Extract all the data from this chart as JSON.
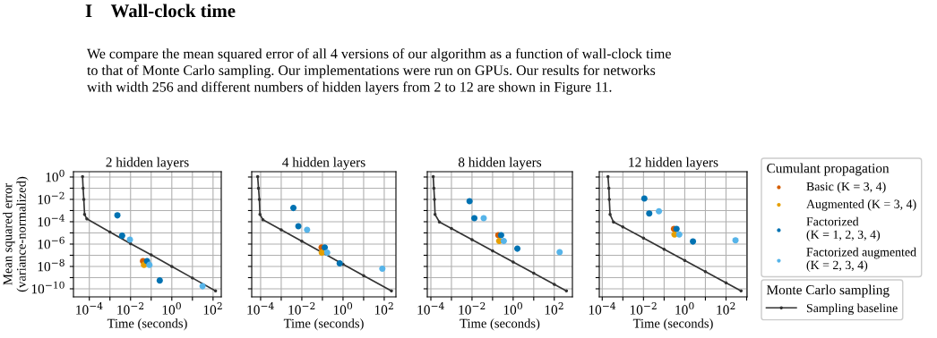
{
  "chart_data": [
    {
      "type": "scatter",
      "title": "2 hidden layers",
      "xlabel": "Time (seconds)",
      "ylabel": "Mean squared error\n(variance-normalized)",
      "log": "xy",
      "grid": true,
      "annotations": [
        "I    Wall-clock time",
        "We compare the mean squared error of all 4 versions of our algorithm as a function of wall-clock time\nto that of Monte Carlo sampling. Our implementations were run on GPUs. Our results for networks\nwith width 256 and different numbers of hidden layers from 2 to 12 are shown in Figure 11."
      ],
      "xlim": [
        1.7e-05,
        250
      ],
      "ylim": [
        1.9e-11,
        3
      ],
      "xticks": [
        {
          "value": 0.0001,
          "label": "10$^{−4}$"
        },
        {
          "value": 0.001,
          "label": null
        },
        {
          "value": 0.01,
          "label": "10$^{−2}$"
        },
        {
          "value": 0.1,
          "label": null
        },
        {
          "value": 1,
          "label": "10$^{0}$"
        },
        {
          "value": 10,
          "label": null
        },
        {
          "value": 100,
          "label": "10$^{2}$"
        }
      ],
      "yticks": [
        {
          "value": 1,
          "label": "10$^{0}$"
        },
        {
          "value": 0.1,
          "label": null
        },
        {
          "value": 0.01,
          "label": "10$^{−2}$"
        },
        {
          "value": 0.001,
          "label": null
        },
        {
          "value": 0.0001,
          "label": "10$^{−4}$"
        },
        {
          "value": 1e-05,
          "label": null
        },
        {
          "value": 1e-06,
          "label": "10$^{−6}$"
        },
        {
          "value": 1e-07,
          "label": null
        },
        {
          "value": 1e-08,
          "label": "10$^{−8}$"
        },
        {
          "value": 1e-09,
          "label": null
        },
        {
          "value": 1e-10,
          "label": "10$^{−10}$"
        }
      ],
      "series": [
        {
          "type": "line",
          "color": "#333333",
          "marker": "circle",
          "x": [
            4.7e-05,
            5e-05,
            5.4e-05,
            5.9e-05,
            7.6e-05,
            0.001,
            0.01,
            0.1,
            1,
            10,
            132
          ],
          "values": [
            1.1,
            0.1,
            0.01,
            0.00045,
            0.00018,
            1.2e-05,
            1.1e-06,
            1.1e-07,
            1e-08,
            9.3e-10,
            6.5e-11
          ]
        },
        {
          "type": "scatter",
          "color": "#d55e00",
          "marker": "circle",
          "x": [
            0.04
          ],
          "values": [
            3e-08
          ]
        },
        {
          "type": "scatter",
          "color": "#e69f00",
          "marker": "circle",
          "x": [
            0.045
          ],
          "values": [
            1.4e-08
          ]
        },
        {
          "type": "scatter",
          "color": "#0072b2",
          "marker": "circle",
          "x": [
            0.0023,
            0.0039,
            0.063,
            0.26
          ],
          "values": [
            0.00037,
            5.6e-06,
            3e-08,
            5.6e-10
          ]
        },
        {
          "type": "scatter",
          "color": "#56b4e9",
          "marker": "circle",
          "x": [
            0.0093,
            0.082,
            31
          ],
          "values": [
            2.5e-06,
            1.4e-08,
            1.7e-10
          ]
        }
      ]
    },
    {
      "type": "scatter",
      "title": "4 hidden layers",
      "xlabel": "Time (seconds)",
      "log": "xy",
      "grid": true,
      "tick_labels": "x",
      "xlim": [
        3.7e-05,
        370
      ],
      "ylim": [
        1.9e-11,
        3
      ],
      "xticks": [
        {
          "value": 0.0001,
          "label": "10$^{−4}$"
        },
        {
          "value": 0.001,
          "label": null
        },
        {
          "value": 0.01,
          "label": "10$^{−2}$"
        },
        {
          "value": 0.1,
          "label": null
        },
        {
          "value": 1,
          "label": "10$^{0}$"
        },
        {
          "value": 10,
          "label": null
        },
        {
          "value": 100,
          "label": "10$^{2}$"
        }
      ],
      "yticks": [
        1,
        0.1,
        0.01,
        0.001,
        0.0001,
        1e-05,
        1e-06,
        1e-07,
        1e-08,
        1e-09,
        1e-10
      ],
      "series": [
        {
          "type": "line",
          "color": "#333333",
          "marker": "circle",
          "x": [
            7.2e-05,
            7.9e-05,
            8.7e-05,
            9.3e-05,
            0.00013,
            0.001,
            0.01,
            0.1,
            1,
            10,
            224
          ],
          "values": [
            1.1,
            0.1,
            0.01,
            0.00045,
            0.00015,
            1.9e-05,
            1.8e-06,
            1.7e-07,
            1.6e-08,
            1.5e-09,
            6.5e-11
          ]
        },
        {
          "type": "scatter",
          "color": "#d55e00",
          "marker": "circle",
          "x": [
            0.091
          ],
          "values": [
            5e-07
          ]
        },
        {
          "type": "scatter",
          "color": "#e69f00",
          "marker": "circle",
          "x": [
            0.093
          ],
          "values": [
            1.7e-07
          ]
        },
        {
          "type": "scatter",
          "color": "#0072b2",
          "marker": "circle",
          "x": [
            0.0039,
            0.0068,
            0.13,
            0.69
          ],
          "values": [
            0.0017,
            4e-05,
            5e-07,
            1.9e-08
          ]
        },
        {
          "type": "scatter",
          "color": "#56b4e9",
          "marker": "circle",
          "x": [
            0.018,
            0.17,
            81
          ],
          "values": [
            1.9e-05,
            1.7e-07,
            6.3e-09
          ]
        }
      ]
    },
    {
      "type": "scatter",
      "title": "8 hidden layers",
      "xlabel": "Time (seconds)",
      "log": "xy",
      "grid": true,
      "tick_labels": "x",
      "xlim": [
        6.7e-05,
        760
      ],
      "ylim": [
        1.9e-11,
        3
      ],
      "xticks": [
        {
          "value": 0.0001,
          "label": "10$^{−4}$"
        },
        {
          "value": 0.001,
          "label": null
        },
        {
          "value": 0.01,
          "label": "10$^{−2}$"
        },
        {
          "value": 0.1,
          "label": null
        },
        {
          "value": 1,
          "label": "10$^{0}$"
        },
        {
          "value": 10,
          "label": null
        },
        {
          "value": 100,
          "label": "10$^{2}$"
        }
      ],
      "yticks": [
        1,
        0.1,
        0.01,
        0.001,
        0.0001,
        1e-05,
        1e-06,
        1e-07,
        1e-08,
        1e-09,
        1e-10
      ],
      "series": [
        {
          "type": "line",
          "color": "#333333",
          "marker": "circle",
          "x": [
            0.00013,
            0.00014,
            0.00015,
            0.00016,
            0.00026,
            0.001,
            0.01,
            0.1,
            1,
            10,
            100,
            389
          ],
          "values": [
            1.1,
            0.1,
            0.01,
            0.00045,
            9.5e-05,
            2.5e-05,
            2.5e-06,
            2.5e-07,
            2.5e-08,
            2.5e-09,
            2.5e-10,
            6.5e-11
          ]
        },
        {
          "type": "scatter",
          "color": "#d55e00",
          "marker": "circle",
          "x": [
            0.19
          ],
          "values": [
            6.3e-06
          ]
        },
        {
          "type": "scatter",
          "color": "#e69f00",
          "marker": "circle",
          "x": [
            0.21
          ],
          "values": [
            1.9e-06
          ]
        },
        {
          "type": "scatter",
          "color": "#0072b2",
          "marker": "circle",
          "x": [
            0.0076,
            0.013,
            0.26,
            1.6
          ],
          "values": [
            0.0068,
            0.00021,
            6.3e-06,
            3.9e-07
          ]
        },
        {
          "type": "scatter",
          "color": "#56b4e9",
          "marker": "circle",
          "x": [
            0.037,
            0.35,
            182
          ],
          "values": [
            0.00021,
            1.9e-06,
            1.9e-07
          ]
        }
      ]
    },
    {
      "type": "scatter",
      "title": "12 hidden layers",
      "xlabel": "Time (seconds)",
      "log": "xy",
      "grid": true,
      "legend": "right",
      "legend_title": [
        "Cumulant propagation",
        "Monte Carlo sampling"
      ],
      "tick_labels": "x",
      "xlim": [
        7.2e-05,
        1050
      ],
      "ylim": [
        1.9e-11,
        3
      ],
      "xticks": [
        {
          "value": 0.0001,
          "label": "10$^{−4}$"
        },
        {
          "value": 0.001,
          "label": null
        },
        {
          "value": 0.01,
          "label": "10$^{−2}$"
        },
        {
          "value": 0.1,
          "label": null
        },
        {
          "value": 1,
          "label": "10$^{0}$"
        },
        {
          "value": 10,
          "label": null
        },
        {
          "value": 100,
          "label": "10$^{2}$"
        },
        {
          "value": 1000,
          "label": null
        }
      ],
      "yticks": [
        1,
        0.1,
        0.01,
        0.001,
        0.0001,
        1e-05,
        1e-06,
        1e-07,
        1e-08,
        1e-09,
        1e-10
      ],
      "series": [
        {
          "name": "Sampling baseline",
          "type": "line",
          "color": "#333333",
          "marker": "circle",
          "x": [
            0.00019,
            0.00021,
            0.00022,
            0.00024,
            0.00035,
            0.001,
            0.01,
            0.1,
            1,
            10,
            100,
            537
          ],
          "values": [
            1.1,
            0.1,
            0.01,
            0.00045,
            9.5e-05,
            3.4e-05,
            3.4e-06,
            3.4e-07,
            3.5e-08,
            3.5e-09,
            3.5e-10,
            6.5e-11
          ]
        },
        {
          "name": "Basic (K = 3, 4)",
          "type": "scatter",
          "color": "#d55e00",
          "marker": "circle",
          "x": [
            0.3
          ],
          "values": [
            2.3e-05
          ]
        },
        {
          "name": "Augmented (K = 3, 4)",
          "type": "scatter",
          "color": "#e69f00",
          "marker": "circle",
          "x": [
            0.32
          ],
          "values": [
            7.1e-06
          ]
        },
        {
          "name": "Factorized\n(K = 1, 2, 3, 4)",
          "type": "scatter",
          "color": "#0072b2",
          "marker": "circle",
          "x": [
            0.011,
            0.019,
            0.4,
            2.5
          ],
          "values": [
            0.012,
            0.00054,
            2.3e-05,
            1.7e-06
          ]
        },
        {
          "name": "Factorized augmented\n(K = 2, 3, 4)",
          "type": "scatter",
          "color": "#56b4e9",
          "marker": "circle",
          "x": [
            0.056,
            0.54,
            288
          ],
          "values": [
            0.00087,
            7.1e-06,
            2.2e-06
          ]
        }
      ]
    }
  ]
}
